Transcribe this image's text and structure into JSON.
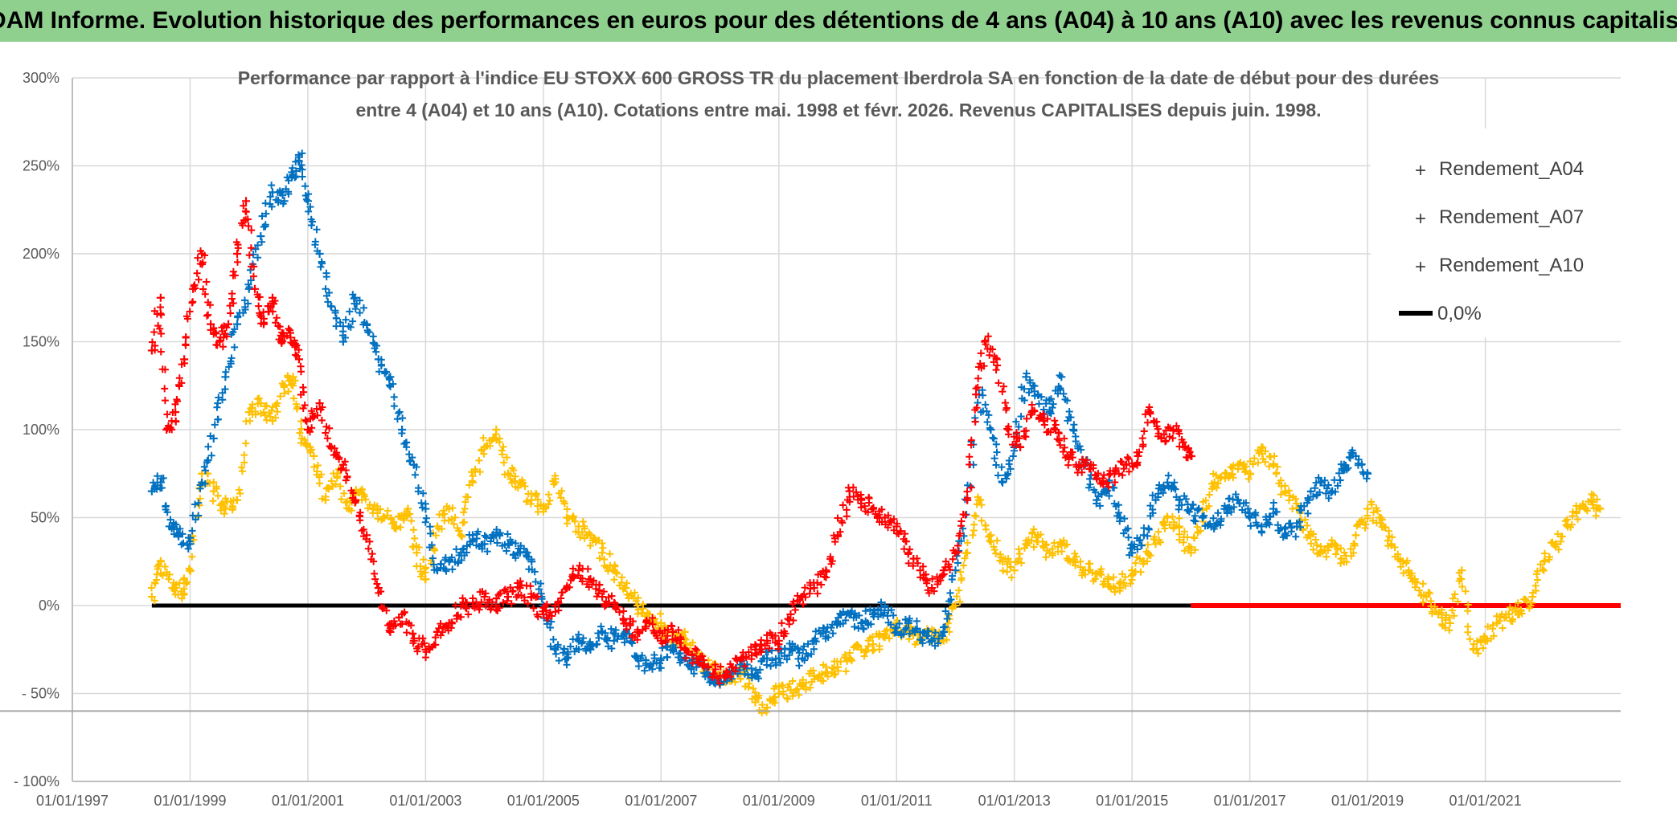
{
  "header": {
    "title": "ADAM Informe. Evolution historique des performances en euros pour des détentions de 4 ans (A04) à 10 ans (A10) avec les revenus connus capitalisés"
  },
  "chart_data": {
    "type": "scatter",
    "subtitle_line1": "Performance par rapport à l'indice EU STOXX 600 GROSS TR  du placement Iberdrola SA en fonction de la date de début pour des durées",
    "subtitle_line2": "entre 4 (A04) et 10 ans (A10). Cotations entre mai. 1998 et févr. 2026. Revenus CAPITALISES depuis juin. 1998.",
    "xlabel": "",
    "ylabel": "",
    "xlim": [
      1997.0,
      2023.3
    ],
    "ylim": [
      -100,
      300
    ],
    "grid": true,
    "x_tick_labels": [
      "01/01/1997",
      "01/01/1999",
      "01/01/2001",
      "01/01/2003",
      "01/01/2005",
      "01/01/2007",
      "01/01/2009",
      "01/01/2011",
      "01/01/2013",
      "01/01/2015",
      "01/01/2017",
      "01/01/2019",
      "01/01/2021"
    ],
    "x_tick_values": [
      1997,
      1999,
      2001,
      2003,
      2005,
      2007,
      2009,
      2011,
      2013,
      2015,
      2017,
      2019,
      2021
    ],
    "y_tick_labels": [
      "300%",
      "250%",
      "200%",
      "150%",
      "100%",
      "50%",
      "0%",
      "- 50%",
      "- 100%"
    ],
    "y_tick_values": [
      300,
      250,
      200,
      150,
      100,
      50,
      0,
      -50,
      -100
    ],
    "legend_position": "top-right",
    "series": [
      {
        "name": "Rendement_A04",
        "color": "#ffc000",
        "marker": "+",
        "x": [
          1998.35,
          1998.5,
          1998.7,
          1998.85,
          1999.0,
          1999.2,
          1999.4,
          1999.6,
          1999.8,
          2000.0,
          2000.2,
          2000.4,
          2000.6,
          2000.75,
          2000.9,
          2001.1,
          2001.3,
          2001.5,
          2001.7,
          2001.9,
          2002.1,
          2002.3,
          2002.5,
          2002.7,
          2002.85,
          2003.0,
          2003.2,
          2003.4,
          2003.6,
          2003.8,
          2004.0,
          2004.2,
          2004.4,
          2004.6,
          2004.8,
          2005.0,
          2005.2,
          2005.4,
          2005.6,
          2005.8,
          2006.0,
          2006.2,
          2006.4,
          2006.6,
          2006.8,
          2007.0,
          2007.2,
          2007.4,
          2007.6,
          2007.8,
          2008.0,
          2008.2,
          2008.4,
          2008.6,
          2008.8,
          2009.0,
          2009.2,
          2009.4,
          2009.6,
          2009.8,
          2010.0,
          2010.2,
          2010.4,
          2010.6,
          2010.8,
          2011.0,
          2011.2,
          2011.4,
          2011.6,
          2011.8,
          2012.0,
          2012.2,
          2012.4,
          2012.6,
          2012.8,
          2013.0,
          2013.2,
          2013.4,
          2013.6,
          2013.8,
          2014.0,
          2014.2,
          2014.4,
          2014.6,
          2014.8,
          2015.0,
          2015.2,
          2015.4,
          2015.6,
          2015.8,
          2016.0,
          2016.2,
          2016.4,
          2016.6,
          2016.8,
          2017.0,
          2017.2,
          2017.4,
          2017.6,
          2017.8,
          2018.0,
          2018.2,
          2018.4,
          2018.6,
          2018.8,
          2019.0,
          2019.2,
          2019.4,
          2019.6,
          2019.8,
          2020.0,
          2020.2,
          2020.4,
          2020.6,
          2020.8,
          2021.0,
          2021.2,
          2021.4,
          2021.6,
          2021.8,
          2022.0,
          2022.2,
          2022.4,
          2022.6,
          2022.8,
          2022.95
        ],
        "y": [
          5,
          25,
          10,
          8,
          20,
          75,
          65,
          55,
          60,
          110,
          115,
          105,
          125,
          130,
          95,
          85,
          60,
          75,
          55,
          65,
          55,
          50,
          45,
          55,
          30,
          15,
          45,
          55,
          40,
          70,
          90,
          100,
          75,
          70,
          60,
          55,
          72,
          50,
          45,
          40,
          30,
          20,
          10,
          0,
          -5,
          -10,
          -20,
          -15,
          -30,
          -35,
          -40,
          -42,
          -38,
          -55,
          -58,
          -50,
          -48,
          -45,
          -40,
          -38,
          -35,
          -30,
          -25,
          -22,
          -18,
          -10,
          -15,
          -20,
          -15,
          -20,
          0,
          30,
          60,
          40,
          25,
          20,
          35,
          40,
          30,
          35,
          25,
          20,
          18,
          15,
          10,
          20,
          25,
          35,
          50,
          45,
          30,
          50,
          70,
          75,
          80,
          75,
          90,
          80,
          65,
          55,
          40,
          30,
          35,
          25,
          40,
          55,
          50,
          35,
          25,
          15,
          5,
          -5,
          -10,
          20,
          -25,
          -20,
          -10,
          -5,
          -3,
          5,
          25,
          35,
          45,
          55,
          60,
          55
        ]
      },
      {
        "name": "Rendement_A07",
        "color": "#0070c0",
        "marker": "+",
        "x": [
          1998.35,
          1998.5,
          1998.65,
          1998.8,
          1999.0,
          1999.2,
          1999.4,
          1999.6,
          1999.8,
          2000.0,
          2000.2,
          2000.4,
          2000.6,
          2000.75,
          2000.85,
          2001.0,
          2001.2,
          2001.4,
          2001.6,
          2001.8,
          2002.0,
          2002.2,
          2002.4,
          2002.6,
          2002.8,
          2003.0,
          2003.2,
          2003.4,
          2003.6,
          2003.8,
          2004.0,
          2004.2,
          2004.4,
          2004.6,
          2004.8,
          2005.0,
          2005.2,
          2005.4,
          2005.6,
          2005.8,
          2006.0,
          2006.2,
          2006.4,
          2006.6,
          2006.8,
          2007.0,
          2007.2,
          2007.4,
          2007.6,
          2007.8,
          2008.0,
          2008.2,
          2008.4,
          2008.6,
          2008.8,
          2009.0,
          2009.2,
          2009.4,
          2009.6,
          2009.8,
          2010.0,
          2010.2,
          2010.4,
          2010.6,
          2010.8,
          2011.0,
          2011.2,
          2011.4,
          2011.6,
          2011.8,
          2012.0,
          2012.2,
          2012.4,
          2012.6,
          2012.8,
          2013.0,
          2013.2,
          2013.4,
          2013.6,
          2013.8,
          2014.0,
          2014.2,
          2014.4,
          2014.6,
          2014.8,
          2015.0,
          2015.2,
          2015.4,
          2015.6,
          2015.8,
          2016.0,
          2016.2,
          2016.4,
          2016.6,
          2016.8,
          2017.0,
          2017.2,
          2017.4,
          2017.6,
          2017.8,
          2018.0,
          2018.2,
          2018.4,
          2018.6,
          2018.8,
          2019.0
        ],
        "y": [
          65,
          70,
          45,
          40,
          35,
          70,
          95,
          130,
          160,
          180,
          210,
          235,
          230,
          245,
          255,
          230,
          200,
          170,
          150,
          175,
          160,
          140,
          130,
          100,
          80,
          55,
          20,
          25,
          30,
          40,
          35,
          40,
          35,
          30,
          25,
          0,
          -25,
          -30,
          -20,
          -25,
          -15,
          -20,
          -15,
          -30,
          -35,
          -30,
          -25,
          -30,
          -35,
          -40,
          -45,
          -38,
          -35,
          -40,
          -30,
          -30,
          -25,
          -30,
          -20,
          -15,
          -10,
          -5,
          -10,
          -5,
          0,
          -15,
          -10,
          -15,
          -20,
          -15,
          20,
          60,
          120,
          100,
          70,
          90,
          130,
          120,
          110,
          130,
          100,
          80,
          60,
          70,
          50,
          30,
          40,
          60,
          70,
          60,
          55,
          50,
          45,
          55,
          60,
          50,
          45,
          55,
          40,
          45,
          60,
          70,
          65,
          80,
          85,
          75
        ]
      },
      {
        "name": "Rendement_A10",
        "color": "#ff0000",
        "marker": "+",
        "x": [
          1998.35,
          1998.5,
          1998.6,
          1998.75,
          1998.9,
          1999.05,
          1999.2,
          1999.35,
          1999.5,
          1999.65,
          1999.8,
          1999.95,
          2000.1,
          2000.25,
          2000.4,
          2000.55,
          2000.7,
          2000.85,
          2001.0,
          2001.2,
          2001.4,
          2001.6,
          2001.8,
          2002.0,
          2002.2,
          2002.4,
          2002.6,
          2002.8,
          2003.0,
          2003.2,
          2003.4,
          2003.6,
          2003.8,
          2004.0,
          2004.2,
          2004.4,
          2004.6,
          2004.8,
          2005.0,
          2005.2,
          2005.4,
          2005.6,
          2005.8,
          2006.0,
          2006.2,
          2006.4,
          2006.6,
          2006.8,
          2007.0,
          2007.2,
          2007.4,
          2007.6,
          2007.8,
          2008.0,
          2008.2,
          2008.4,
          2008.6,
          2008.8,
          2009.0,
          2009.2,
          2009.4,
          2009.6,
          2009.8,
          2010.0,
          2010.2,
          2010.4,
          2010.6,
          2010.8,
          2011.0,
          2011.2,
          2011.4,
          2011.6,
          2011.8,
          2012.0,
          2012.2,
          2012.35,
          2012.5,
          2012.7,
          2012.9,
          2013.1,
          2013.3,
          2013.5,
          2013.7,
          2013.9,
          2014.1,
          2014.3,
          2014.5,
          2014.7,
          2014.9,
          2015.1,
          2015.3,
          2015.5,
          2015.7,
          2015.9,
          2016.0
        ],
        "y": [
          145,
          175,
          100,
          110,
          140,
          180,
          200,
          160,
          150,
          160,
          200,
          230,
          180,
          160,
          175,
          150,
          155,
          140,
          100,
          115,
          90,
          80,
          60,
          40,
          10,
          -15,
          -5,
          -20,
          -25,
          -15,
          -10,
          0,
          0,
          5,
          0,
          5,
          10,
          5,
          -5,
          0,
          10,
          20,
          15,
          5,
          0,
          -10,
          -15,
          -10,
          -20,
          -15,
          -25,
          -30,
          -35,
          -40,
          -35,
          -30,
          -25,
          -20,
          -20,
          -5,
          5,
          10,
          20,
          40,
          65,
          60,
          55,
          50,
          45,
          30,
          20,
          10,
          20,
          30,
          60,
          120,
          150,
          140,
          100,
          90,
          110,
          105,
          100,
          85,
          80,
          80,
          70,
          75,
          80,
          85,
          110,
          95,
          100,
          90,
          85
        ]
      },
      {
        "name": "0,0%",
        "color": "#000000",
        "marker": "line",
        "x": [
          1998.35,
          2016.0
        ],
        "y": [
          0,
          0
        ]
      }
    ]
  }
}
